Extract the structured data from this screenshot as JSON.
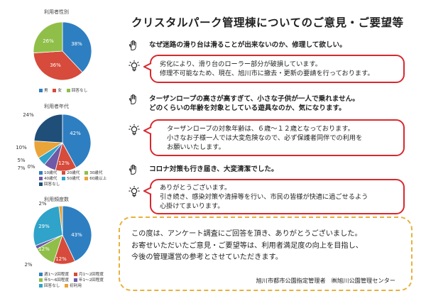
{
  "title": "クリスタルパーク管理棟についてのご意見・ご要望等",
  "colors": {
    "blue": "#2e7fc2",
    "red": "#d64b3b",
    "green": "#8fbf49",
    "orange": "#e9a43a",
    "gray": "#a9a9a9",
    "navy": "#1f4e79",
    "purple": "#6e5aa6",
    "bubble_border": "#d8282f",
    "closing_border": "#e7b23b"
  },
  "items": [
    {
      "question": "なぜ迷路の滑り台は滑ることが出来ないのか、修理して欲しい。",
      "answer_lines": [
        "劣化により、滑り台のローラー部分が破損しています。",
        "修理不可能なため、現在、旭川市に撤去・更新の要請を行っております。"
      ]
    },
    {
      "question_lines": [
        "ターザンロープの高さが高すぎて、小さな子供が一人で乗れません。",
        "どのくらいの年齢を対象としている遊具なのか、気になります。"
      ],
      "answer_lines": [
        "ターザンロープの対象年齢は、６歳～１２歳となっております。",
        "小さなお子様一人では大変危険なので、必ず保護者同伴での利用を",
        "お願いいたします。"
      ]
    },
    {
      "question": "コロナ対策も行き届き、大変清潔でした。",
      "answer_lines": [
        "ありがとうございます。",
        "引き続き、感染対策や清掃等を行い、市民の皆様が快適に過ごせるよう",
        "心掛けてまいります。"
      ]
    }
  ],
  "closing": {
    "lines": [
      "この度は、アンケート調査にご回答を頂き、ありがとうございました。",
      "お寄せいただいたご意見・ご要望等は、利用者満足度の向上を目指し、",
      "今後の管理運営の参考とさせていただきます。"
    ],
    "footer": "旭川市都市公園指定管理者　㈱旭川公園管理センター"
  },
  "chart_data": [
    {
      "type": "pie",
      "title": "利用者性別",
      "categories": [
        "男",
        "女",
        "回答なし"
      ],
      "values": [
        38,
        36,
        26
      ],
      "data_labels": [
        "38%",
        "36%",
        "26%"
      ],
      "colors": [
        "#2e7fc2",
        "#d64b3b",
        "#8fbf49"
      ]
    },
    {
      "type": "pie",
      "title": "利用者年代",
      "categories": [
        "10歳代",
        "20歳代",
        "30歳代",
        "40歳代",
        "50歳代",
        "60歳以上",
        "回答なし"
      ],
      "values": [
        42,
        12,
        0,
        7,
        5,
        10,
        24
      ],
      "data_labels": [
        "42%",
        "12%",
        "0%",
        "7%",
        "5%",
        "10%",
        "24%"
      ],
      "colors": [
        "#2e7fc2",
        "#d64b3b",
        "#8fbf49",
        "#6e5aa6",
        "#2fa3c9",
        "#e9a43a",
        "#1f4e79"
      ]
    },
    {
      "type": "pie",
      "title": "利用頻度数",
      "categories": [
        "週1～2回程度",
        "月1～2回程度",
        "年5～6回程度",
        "年1～2回程度",
        "回答なし",
        "初利用"
      ],
      "values": [
        43,
        12,
        12,
        2,
        29,
        2
      ],
      "data_labels": [
        "43%",
        "12%",
        "12%",
        "2%",
        "29%",
        "2%"
      ],
      "colors": [
        "#2e7fc2",
        "#d64b3b",
        "#8fbf49",
        "#6e5aa6",
        "#2fa3c9",
        "#e9a43a"
      ]
    }
  ]
}
